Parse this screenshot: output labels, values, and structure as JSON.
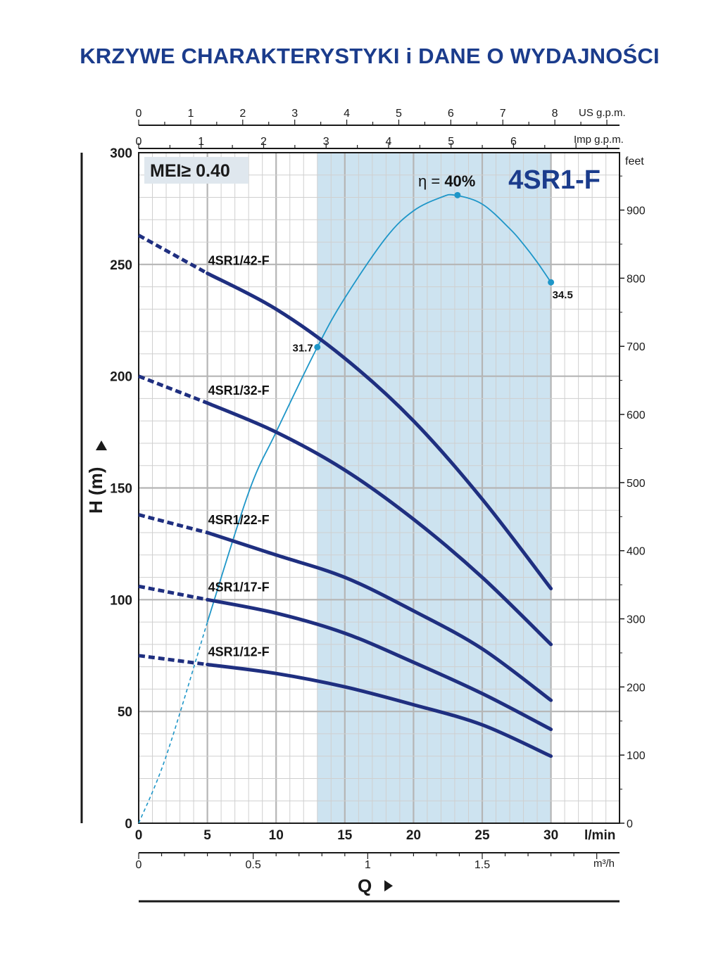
{
  "title": "KRZYWE CHARAKTERYSTYKI i DANE O WYDAJNOŚCI",
  "model": "4SR1-F",
  "mei_label": "MEI≥ 0.40",
  "efficiency_label_prefix": "η = ",
  "efficiency_label_value": "40%",
  "colors": {
    "title": "#1b3c8c",
    "curve": "#1f2f80",
    "efficiency": "#1e96c8",
    "band": "#cde3f0",
    "mei_box": "#dfe7ee"
  },
  "axes": {
    "ylabel": "H (m)",
    "xlabel": "Q",
    "x_unit_lmin": "l/min",
    "x_unit_m3h": "m³/h",
    "x_unit_usgpm": "US g.p.m.",
    "x_unit_impgpm": "Imp g.p.m.",
    "y_unit_feet": "feet",
    "x_ticks_lmin": [
      "0",
      "5",
      "10",
      "15",
      "20",
      "25",
      "30"
    ],
    "x_ticks_m3h": [
      "0",
      "0.5",
      "1",
      "1.5"
    ],
    "x_ticks_usgpm": [
      "0",
      "1",
      "2",
      "3",
      "4",
      "5",
      "6",
      "7",
      "8"
    ],
    "x_ticks_impgpm": [
      "0",
      "1",
      "2",
      "3",
      "4",
      "5",
      "6"
    ],
    "y_ticks_m": [
      "0",
      "50",
      "100",
      "150",
      "200",
      "250",
      "300"
    ],
    "y_ticks_feet": [
      "0",
      "100",
      "200",
      "300",
      "400",
      "500",
      "600",
      "700",
      "800",
      "900"
    ]
  },
  "chart_data": {
    "type": "line",
    "title": "4SR1-F",
    "xlabel": "Q",
    "ylabel": "H (m)",
    "xlim": [
      0,
      35
    ],
    "ylim": [
      0,
      300
    ],
    "grid": true,
    "recommended_range": [
      13,
      30
    ],
    "series": [
      {
        "name": "4SR1/42-F",
        "x": [
          0,
          5,
          10,
          15,
          20,
          25,
          30
        ],
        "y": [
          263,
          246,
          230,
          208,
          180,
          145,
          105
        ],
        "dashed_until": 5
      },
      {
        "name": "4SR1/32-F",
        "x": [
          0,
          5,
          10,
          15,
          20,
          25,
          30
        ],
        "y": [
          200,
          188,
          175,
          158,
          136,
          110,
          80
        ],
        "dashed_until": 5
      },
      {
        "name": "4SR1/22-F",
        "x": [
          0,
          5,
          10,
          15,
          20,
          25,
          30
        ],
        "y": [
          138,
          130,
          120,
          110,
          95,
          78,
          55
        ],
        "dashed_until": 5
      },
      {
        "name": "4SR1/17-F",
        "x": [
          0,
          5,
          10,
          15,
          20,
          25,
          30
        ],
        "y": [
          106,
          100,
          94,
          85,
          72,
          58,
          42
        ],
        "dashed_until": 5
      },
      {
        "name": "4SR1/12-F",
        "x": [
          0,
          5,
          10,
          15,
          20,
          25,
          30
        ],
        "y": [
          75,
          71,
          67,
          61,
          53,
          44,
          30
        ],
        "dashed_until": 5
      }
    ],
    "efficiency_curve": {
      "dashed_until": 5,
      "x": [
        0,
        2,
        5,
        8,
        10,
        13,
        15,
        18,
        20,
        22,
        23,
        25,
        27,
        28,
        29,
        30
      ],
      "y": [
        0,
        30,
        90,
        148,
        175,
        213,
        235,
        262,
        274,
        280,
        281,
        277,
        266,
        259,
        251,
        242
      ],
      "points": [
        {
          "x": 13,
          "y": 213,
          "label": "31.7"
        },
        {
          "x": 23.2,
          "y": 281,
          "label": ""
        },
        {
          "x": 30,
          "y": 242,
          "label": "34.5"
        }
      ]
    }
  }
}
